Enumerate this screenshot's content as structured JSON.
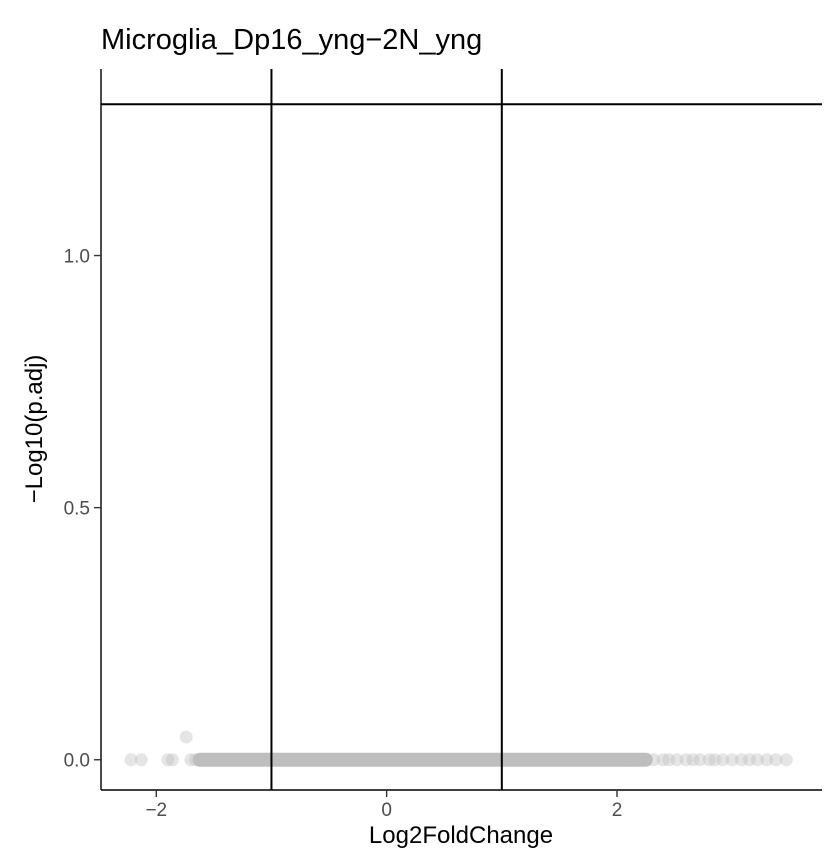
{
  "chart_data": {
    "type": "scatter",
    "title": "Microglia_Dp16_yng−2N_yng",
    "xlabel": "Log2FoldChange",
    "ylabel": "−Log10(p.adj)",
    "xlim": [
      -2.48,
      3.78
    ],
    "ylim": [
      -0.06,
      1.37
    ],
    "x_ticks": [
      {
        "value": -2,
        "label": "−2"
      },
      {
        "value": 0,
        "label": "0"
      },
      {
        "value": 2,
        "label": "2"
      }
    ],
    "y_ticks": [
      {
        "value": 0.0,
        "label": "0.0"
      },
      {
        "value": 0.5,
        "label": "0.5"
      },
      {
        "value": 1.0,
        "label": "1.0"
      }
    ],
    "grid": false,
    "reference_lines": {
      "vertical": [
        -1,
        1
      ],
      "horizontal": [
        1.3
      ]
    },
    "point_color": "#bebebe",
    "point_opacity": 0.4,
    "line_color": "#000000",
    "points": {
      "x": [
        -2.22,
        -2.13,
        -1.9,
        -1.86,
        -1.74,
        -1.7,
        -1.66,
        -1.63,
        -1.6,
        -1.5,
        -1.45,
        -1.4,
        -1.35,
        -1.3,
        -1.25,
        -1.2,
        -1.15,
        -1.1,
        -1.05,
        -1.0,
        -0.95,
        -0.9,
        -0.85,
        -0.8,
        -0.75,
        -0.7,
        -0.65,
        -0.6,
        -0.55,
        -0.5,
        -0.45,
        -0.4,
        -0.35,
        -0.3,
        -0.25,
        -0.2,
        -0.15,
        -0.1,
        -0.05,
        0.0,
        0.05,
        0.1,
        0.15,
        0.2,
        0.25,
        0.3,
        0.35,
        0.4,
        0.45,
        0.5,
        0.55,
        0.6,
        0.65,
        0.7,
        0.75,
        0.8,
        0.85,
        0.9,
        0.95,
        1.0,
        1.05,
        1.1,
        1.15,
        1.2,
        1.25,
        1.3,
        1.35,
        1.4,
        1.45,
        1.5,
        1.55,
        1.6,
        1.65,
        1.7,
        1.75,
        1.8,
        1.85,
        1.9,
        1.95,
        2.0,
        2.05,
        2.1,
        2.15,
        2.2,
        2.25,
        2.32,
        2.4,
        2.45,
        2.52,
        2.6,
        2.66,
        2.72,
        2.8,
        2.85,
        2.92,
        3.0,
        3.08,
        3.15,
        3.22,
        3.3,
        3.38,
        3.47
      ],
      "y": [
        0.0,
        0.0,
        0.0,
        0.0,
        0.045,
        0.0,
        0.0,
        0.0,
        0.0,
        0.0,
        0.0,
        0.0,
        0.0,
        0.0,
        0.0,
        0.0,
        0.0,
        0.0,
        0.0,
        0.0,
        0.0,
        0.0,
        0.0,
        0.0,
        0.0,
        0.0,
        0.0,
        0.0,
        0.0,
        0.0,
        0.0,
        0.0,
        0.0,
        0.0,
        0.0,
        0.0,
        0.0,
        0.0,
        0.0,
        0.0,
        0.0,
        0.0,
        0.0,
        0.0,
        0.0,
        0.0,
        0.0,
        0.0,
        0.0,
        0.0,
        0.0,
        0.0,
        0.0,
        0.0,
        0.0,
        0.0,
        0.0,
        0.0,
        0.0,
        0.0,
        0.0,
        0.0,
        0.0,
        0.0,
        0.0,
        0.0,
        0.0,
        0.0,
        0.0,
        0.0,
        0.0,
        0.0,
        0.0,
        0.0,
        0.0,
        0.0,
        0.0,
        0.0,
        0.0,
        0.0,
        0.0,
        0.0,
        0.0,
        0.0,
        0.0,
        0.0,
        0.0,
        0.0,
        0.0,
        0.0,
        0.0,
        0.0,
        0.0,
        0.0,
        0.0,
        0.0,
        0.0,
        0.0,
        0.0,
        0.0,
        0.0,
        0.0
      ]
    },
    "dense_band": {
      "x_from": -1.62,
      "x_to": 2.25,
      "y": 0.0
    }
  }
}
